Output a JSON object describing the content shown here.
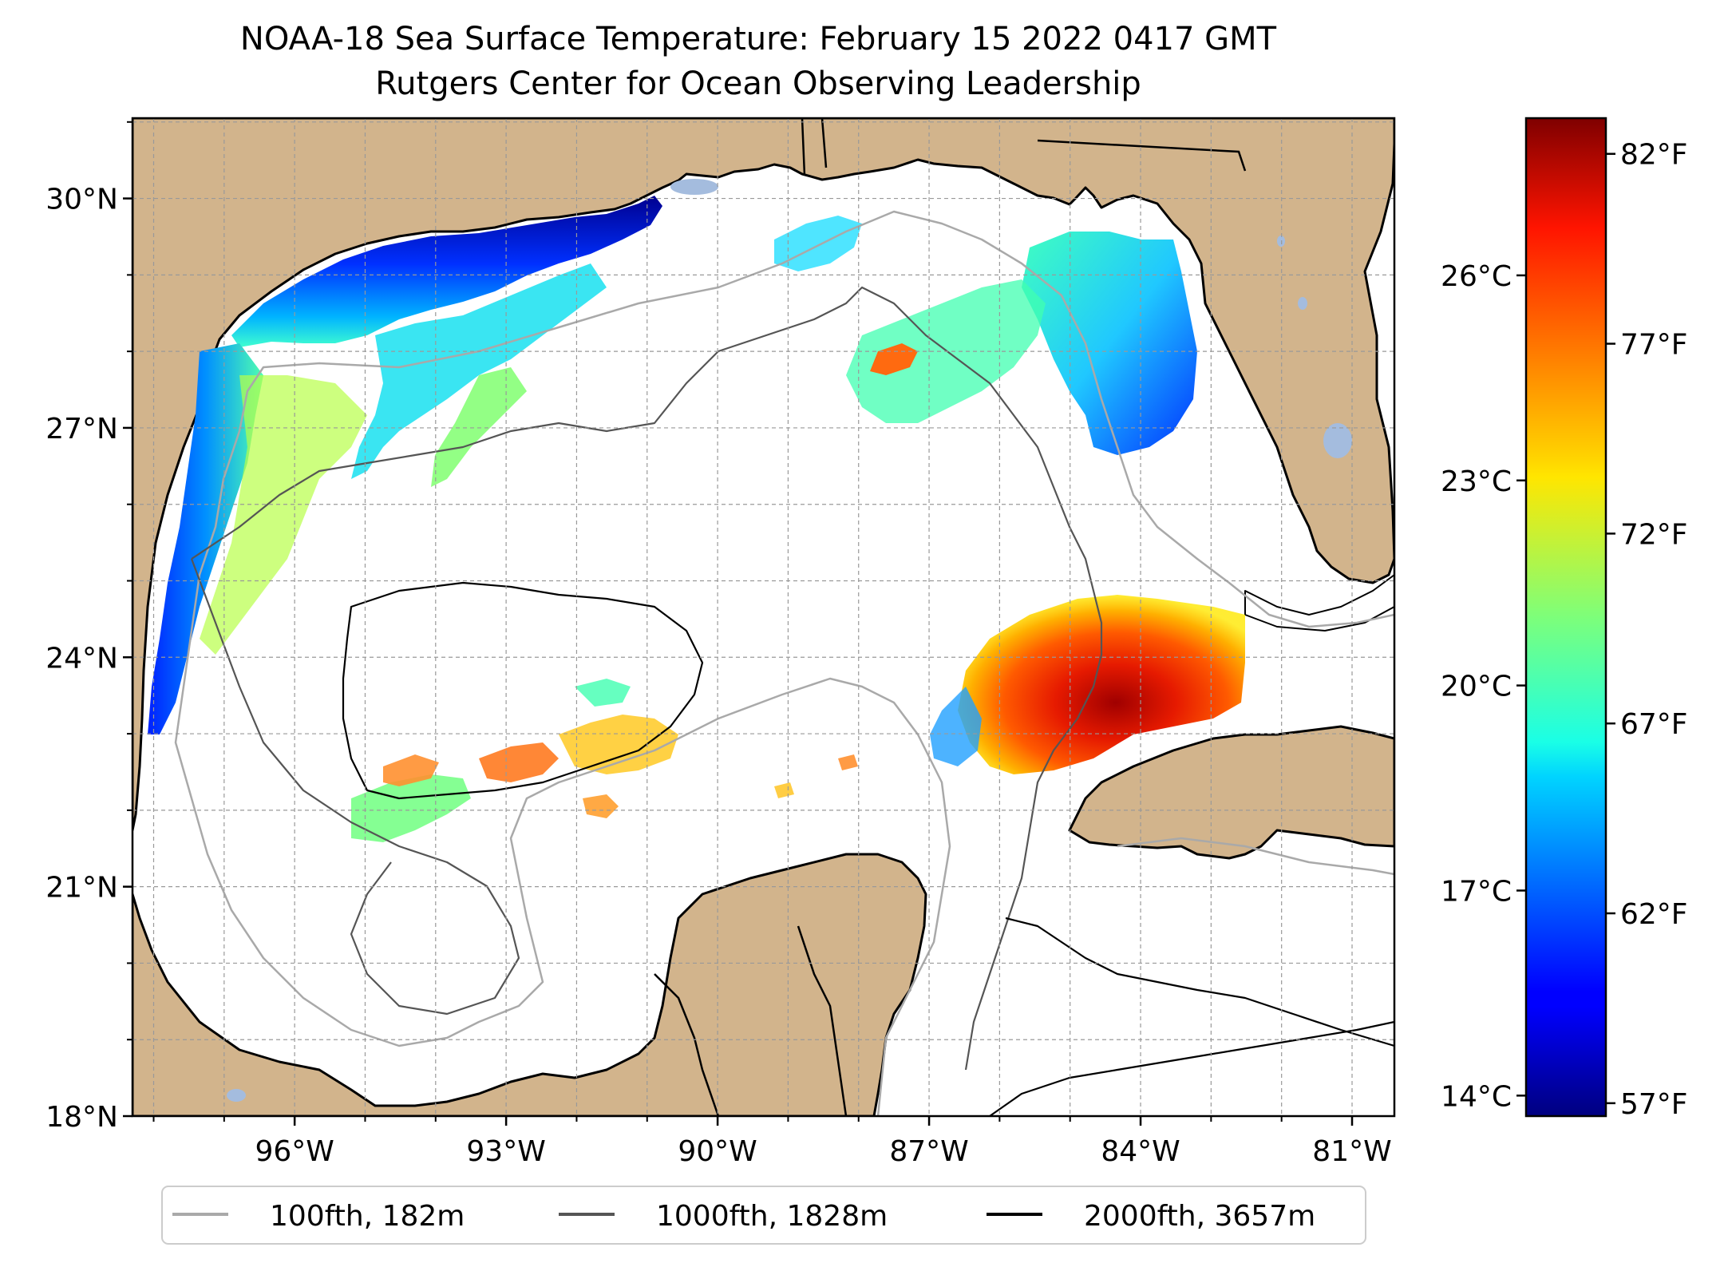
{
  "figure": {
    "title_line1": "NOAA-18 Sea Surface Temperature: February 15 2022 0417 GMT",
    "title_line2": "Rutgers Center for Ocean Observing Leadership"
  },
  "map": {
    "lat_ticks": [
      {
        "value": 30,
        "label": "30°N"
      },
      {
        "value": 27,
        "label": "27°N"
      },
      {
        "value": 24,
        "label": "24°N"
      },
      {
        "value": 21,
        "label": "21°N"
      },
      {
        "value": 18,
        "label": "18°N"
      }
    ],
    "lon_ticks": [
      {
        "value": -96,
        "label": "96°W"
      },
      {
        "value": -93,
        "label": "93°W"
      },
      {
        "value": -90,
        "label": "90°W"
      },
      {
        "value": -87,
        "label": "87°W"
      },
      {
        "value": -84,
        "label": "84°W"
      },
      {
        "value": -81,
        "label": "81°W"
      }
    ],
    "extent": {
      "lon_min": -98.3,
      "lon_max": -80.4,
      "lat_min": 18.0,
      "lat_max": 31.05
    },
    "gridlines": true,
    "land_color": "#d2b48c",
    "lake_color": "#a4bcde"
  },
  "colorbar": {
    "min_c": 13.7,
    "max_c": 28.3,
    "celsius_ticks": [
      {
        "value": 14,
        "label": "14°C"
      },
      {
        "value": 17,
        "label": "17°C"
      },
      {
        "value": 20,
        "label": "20°C"
      },
      {
        "value": 23,
        "label": "23°C"
      },
      {
        "value": 26,
        "label": "26°C"
      }
    ],
    "fahrenheit_ticks": [
      {
        "value": 57,
        "label": "57°F"
      },
      {
        "value": 62,
        "label": "62°F"
      },
      {
        "value": 67,
        "label": "67°F"
      },
      {
        "value": 72,
        "label": "72°F"
      },
      {
        "value": 77,
        "label": "77°F"
      },
      {
        "value": 82,
        "label": "82°F"
      }
    ],
    "colormap": "jet"
  },
  "legend": {
    "items": [
      {
        "label": "100fth, 182m",
        "color": "#a9a9a9"
      },
      {
        "label": "1000fth, 1828m",
        "color": "#555555"
      },
      {
        "label": "2000fth, 3657m",
        "color": "#000000"
      }
    ]
  }
}
